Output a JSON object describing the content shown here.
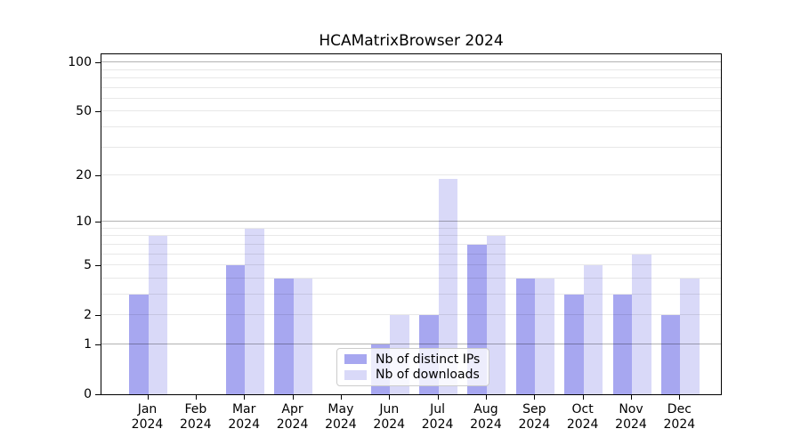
{
  "title": "HCAMatrixBrowser 2024",
  "chart_data": {
    "type": "bar",
    "categories": [
      "Jan",
      "Feb",
      "Mar",
      "Apr",
      "May",
      "Jun",
      "Jul",
      "Aug",
      "Sep",
      "Oct",
      "Nov",
      "Dec"
    ],
    "year": "2024",
    "series": [
      {
        "name": "Nb of distinct IPs",
        "color": "#a7a7f0",
        "values": [
          3,
          0,
          5,
          4,
          0,
          1,
          2,
          7,
          4,
          3,
          3,
          2
        ]
      },
      {
        "name": "Nb of downloads",
        "color": "#d9d9f8",
        "values": [
          8,
          0,
          9,
          4,
          0,
          2,
          19,
          8,
          4,
          5,
          6,
          4
        ]
      }
    ],
    "yscale": "log1p",
    "ylim": [
      0,
      112
    ],
    "yticks": [
      0,
      1,
      2,
      5,
      10,
      20,
      50,
      100
    ],
    "major_gridlines": [
      1,
      10,
      100
    ],
    "minor_gridlines": [
      2,
      3,
      4,
      5,
      6,
      7,
      8,
      9,
      20,
      30,
      40,
      50,
      60,
      70,
      80,
      90
    ],
    "legend_position": "lower center",
    "grid": true
  },
  "colors": {
    "background": "#ffffff",
    "spine": "#000000",
    "major_grid": "rgba(0,0,0,0.30)",
    "minor_grid": "rgba(0,0,0,0.09)"
  }
}
